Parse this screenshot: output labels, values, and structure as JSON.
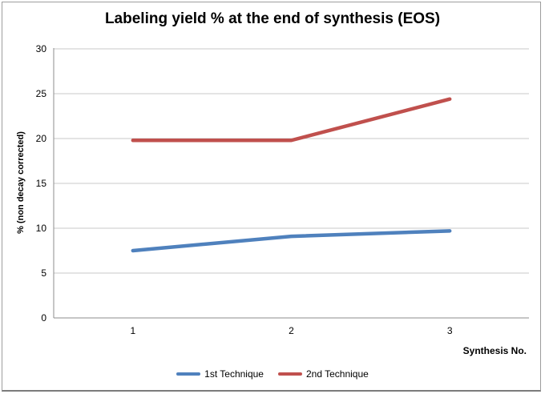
{
  "chart_data": {
    "type": "line",
    "title": "Labeling yield % at the end of synthesis (EOS)",
    "xlabel": "Synthesis No.",
    "ylabel": "% (non decay corrected)",
    "categories": [
      "1",
      "2",
      "3"
    ],
    "series": [
      {
        "name": "1st Technique",
        "color": "#4F81BD",
        "values": [
          7.5,
          9.1,
          9.7
        ]
      },
      {
        "name": "2nd Technique",
        "color": "#C0504D",
        "values": [
          19.8,
          19.8,
          24.4
        ]
      }
    ],
    "ylim": [
      0,
      30
    ],
    "yticks": [
      0,
      5,
      10,
      15,
      20,
      25,
      30
    ],
    "grid": true,
    "legend_position": "bottom",
    "colors": {
      "gridline": "#c9c9c9",
      "axis_line": "#8e8e8e",
      "text": "#000000",
      "background": "#ffffff"
    }
  }
}
